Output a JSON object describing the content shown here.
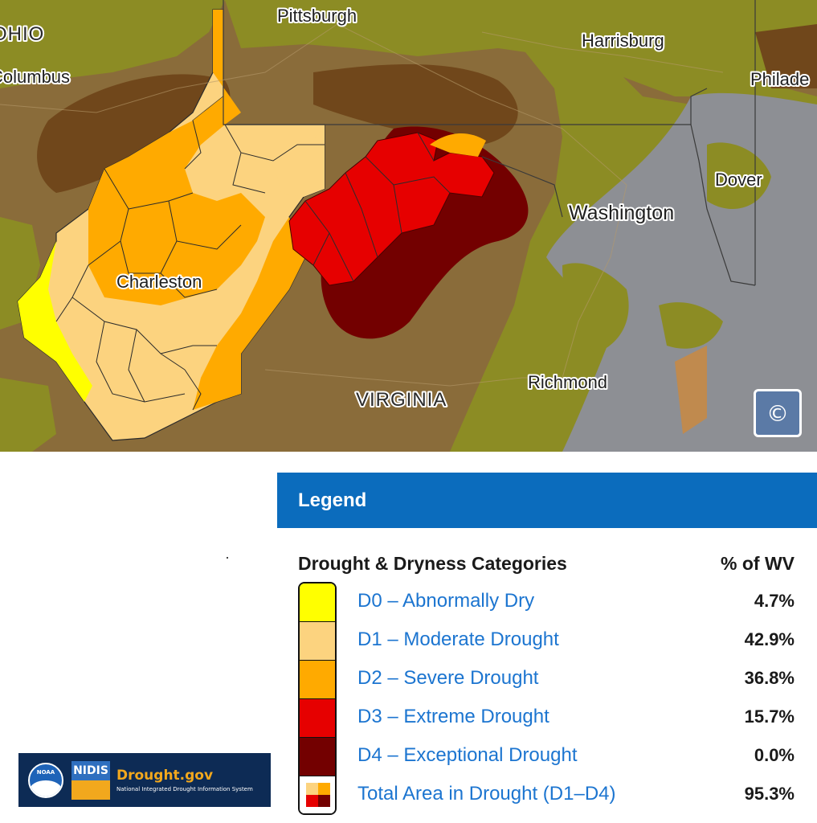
{
  "map": {
    "cities": [
      "Pittsburgh",
      "Harrisburg",
      "Philade",
      "Columbus",
      "Dover",
      "Washington",
      "Charleston",
      "Richmond"
    ],
    "states": [
      "OHIO",
      "VIRGINIA"
    ],
    "copyright_symbol": "©",
    "colors": {
      "base": "#8a6c3a",
      "d0": "#ffff00",
      "d1": "#fcd37f",
      "d2": "#ffaa00",
      "d3": "#e60000",
      "d4": "#730000",
      "olive": "#8c8c24",
      "water": "#8d8f94",
      "dark_brown": "#70471b"
    }
  },
  "legend": {
    "header": "Legend",
    "categories_heading": "Drought & Dryness Categories",
    "percent_heading": "% of WV",
    "rows": [
      {
        "label": "D0 – Abnormally Dry",
        "percent": "4.7%",
        "color": "#ffff00"
      },
      {
        "label": "D1 – Moderate Drought",
        "percent": "42.9%",
        "color": "#fcd37f"
      },
      {
        "label": "D2 – Severe Drought",
        "percent": "36.8%",
        "color": "#ffaa00"
      },
      {
        "label": "D3 – Extreme Drought",
        "percent": "15.7%",
        "color": "#e60000"
      },
      {
        "label": "D4 – Exceptional Drought",
        "percent": "0.0%",
        "color": "#730000"
      },
      {
        "label": "Total Area in Drought (D1–D4)",
        "percent": "95.3%",
        "color": "multi"
      }
    ]
  },
  "logo": {
    "noaa_text": "NOAA",
    "nidis_text": "NIDIS",
    "site_name": "Drought.gov",
    "subtitle": "National Integrated Drought Information System"
  }
}
